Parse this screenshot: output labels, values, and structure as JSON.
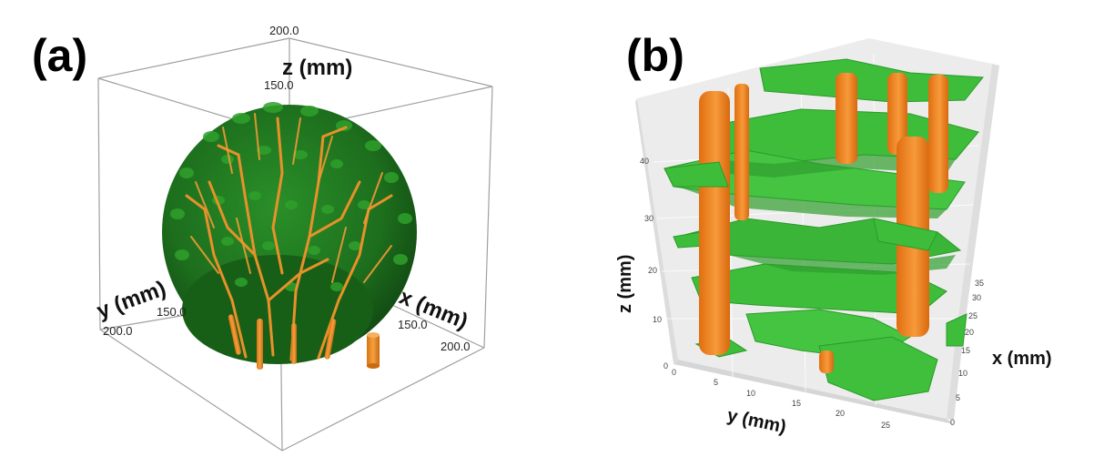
{
  "panel_a": {
    "label": "(a)",
    "axes": {
      "z": "z (mm)",
      "y": "y (mm)",
      "x": "x (mm)"
    },
    "ticks": {
      "z_top": "200.0",
      "z_mid": "150.0",
      "y_end": "200.0",
      "y_mid": "150.0",
      "x_mid": "150.0",
      "x_end": "200.0"
    },
    "colors": {
      "foliage": "#1f7a1f",
      "stems": "#e58a1c",
      "box": "#9a9a9a"
    }
  },
  "panel_b": {
    "label": "(b)",
    "axes": {
      "z": "z (mm)",
      "y": "y (mm)",
      "x": "x (mm)"
    },
    "z_ticks": [
      "0",
      "10",
      "20",
      "30",
      "40"
    ],
    "y_ticks": [
      "0",
      "5",
      "10",
      "15",
      "20",
      "25"
    ],
    "x_ticks": [
      "0",
      "5",
      "10",
      "15",
      "20",
      "25",
      "30",
      "35"
    ],
    "colors": {
      "leaves": "#3fbf3f",
      "stems": "#f07f1e",
      "pane": "#e8e8e8"
    }
  }
}
